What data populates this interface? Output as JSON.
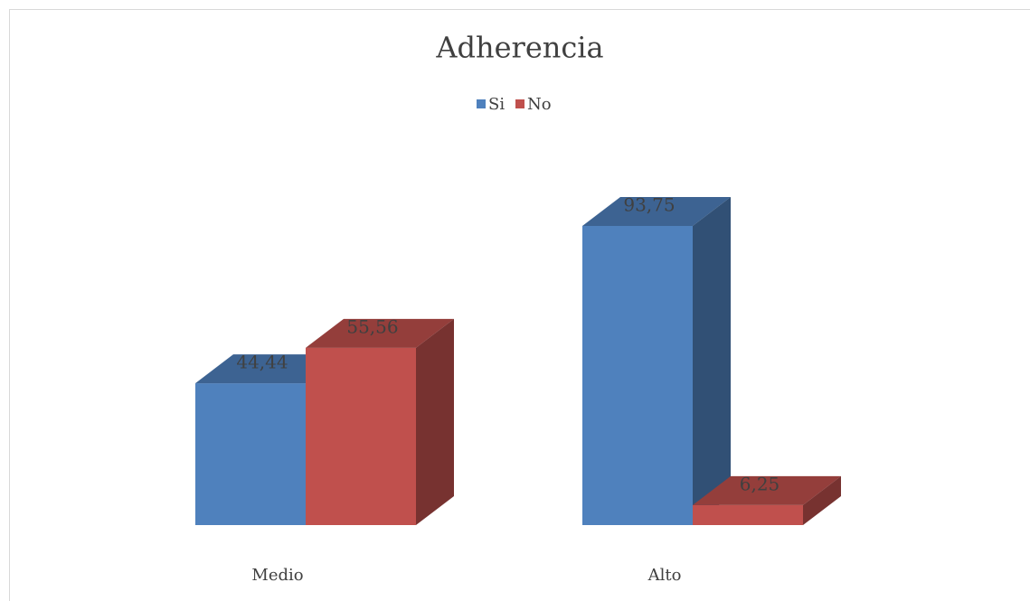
{
  "chart_data": {
    "type": "bar3d",
    "title": "Adherencia",
    "categories": [
      "Medio",
      "Alto"
    ],
    "series": [
      {
        "name": "Si",
        "color": "#4f81bd",
        "values": [
          44.44,
          93.75
        ],
        "value_labels": [
          "44,44",
          "93,75"
        ]
      },
      {
        "name": "No",
        "color": "#c0504d",
        "values": [
          55.56,
          6.25
        ],
        "value_labels": [
          "55,56",
          "6,25"
        ]
      }
    ],
    "legend": "top"
  }
}
